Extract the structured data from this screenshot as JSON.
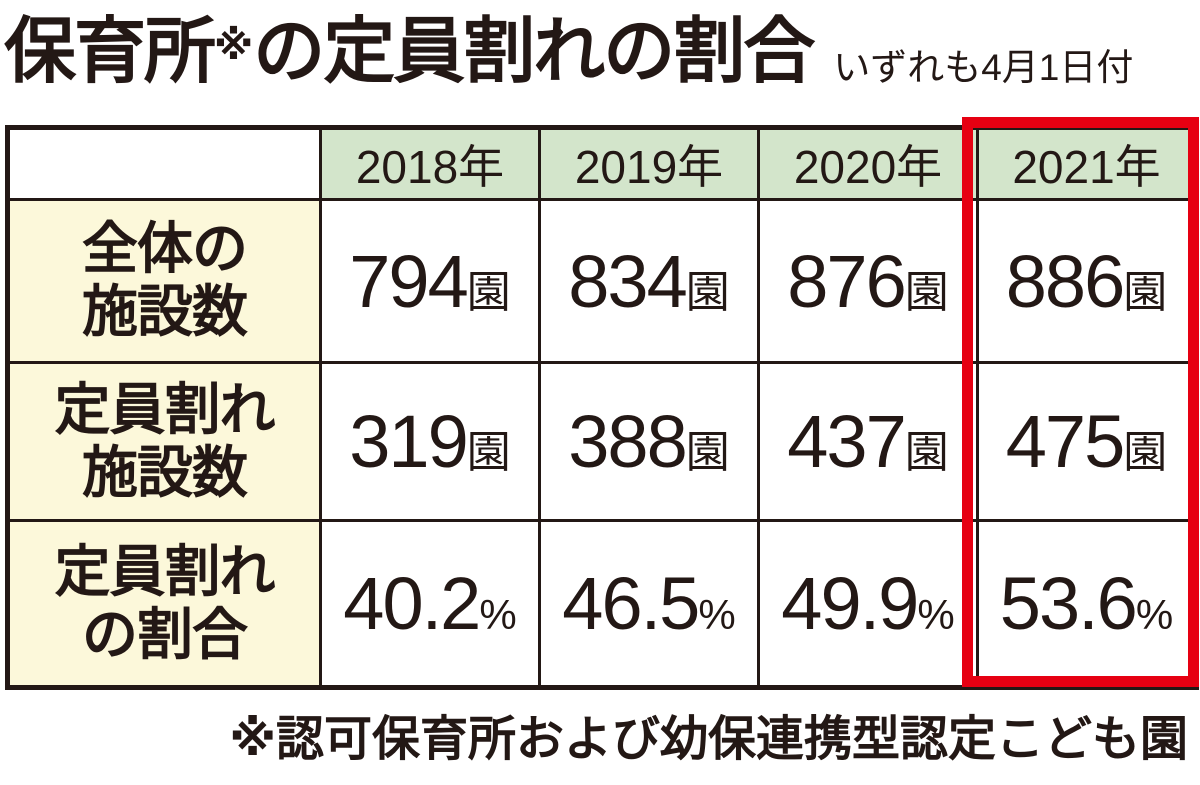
{
  "title": {
    "text_before_marker": "保育所",
    "marker": "※",
    "text_after_marker": "の定員割れの割合",
    "date_note": "いずれも4月1日付"
  },
  "table": {
    "corner_label": "",
    "col_headers": [
      "2018年",
      "2019年",
      "2020年",
      "2021年"
    ],
    "rows": [
      {
        "label": "全体の施設数",
        "label_lines": [
          "全体の",
          "施設数"
        ],
        "values": [
          {
            "num": "794",
            "unit": "園"
          },
          {
            "num": "834",
            "unit": "園"
          },
          {
            "num": "876",
            "unit": "園"
          },
          {
            "num": "886",
            "unit": "園"
          }
        ]
      },
      {
        "label": "定員割れ施設数",
        "label_lines": [
          "定員割れ",
          "施設数"
        ],
        "values": [
          {
            "num": "319",
            "unit": "園"
          },
          {
            "num": "388",
            "unit": "園"
          },
          {
            "num": "437",
            "unit": "園"
          },
          {
            "num": "475",
            "unit": "園"
          }
        ]
      },
      {
        "label": "定員割れの割合",
        "label_lines": [
          "定員割れ",
          "の割合"
        ],
        "values": [
          {
            "num": "40.2",
            "unit": "%"
          },
          {
            "num": "46.5",
            "unit": "%"
          },
          {
            "num": "49.9",
            "unit": "%"
          },
          {
            "num": "53.6",
            "unit": "%"
          }
        ]
      }
    ],
    "highlighted_column": "2021年"
  },
  "footnote": "※認可保育所および幼保連携型認定こども園",
  "colors": {
    "header_green": "#d3e5cb",
    "row_label_cream": "#fcf8da",
    "border_dark": "#231815",
    "highlight_red": "#e60012",
    "text": "#231815"
  },
  "chart_data": {
    "type": "table",
    "title": "保育所※の定員割れの割合",
    "subtitle": "いずれも4月1日付",
    "categories": [
      "2018年",
      "2019年",
      "2020年",
      "2021年"
    ],
    "series": [
      {
        "name": "全体の施設数",
        "unit": "園",
        "values": [
          794,
          834,
          876,
          886
        ]
      },
      {
        "name": "定員割れ施設数",
        "unit": "園",
        "values": [
          319,
          388,
          437,
          475
        ]
      },
      {
        "name": "定員割れの割合",
        "unit": "%",
        "values": [
          40.2,
          46.5,
          49.9,
          53.6
        ]
      }
    ],
    "highlighted_category": "2021年",
    "annotations": [
      "※認可保育所および幼保連携型認定こども園"
    ]
  }
}
